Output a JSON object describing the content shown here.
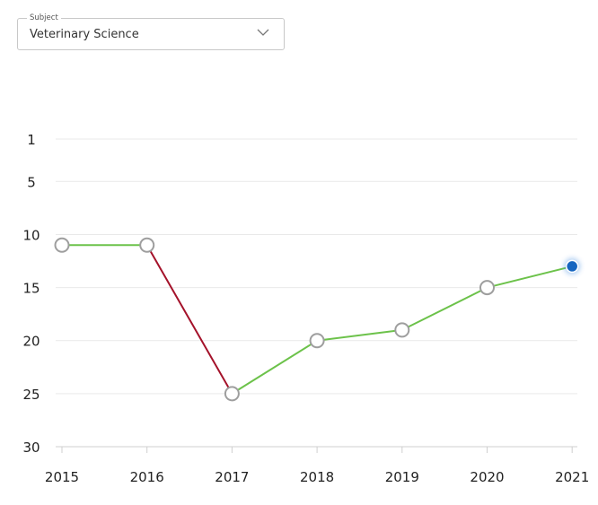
{
  "subject_select": {
    "legend": "Subject",
    "value": "Veterinary Science"
  },
  "chart_data": {
    "type": "line",
    "title": "",
    "xlabel": "",
    "ylabel": "",
    "x": [
      "2015",
      "2016",
      "2017",
      "2018",
      "2019",
      "2020",
      "2021"
    ],
    "values": [
      11,
      11,
      25,
      20,
      19,
      15,
      13
    ],
    "y_ticks": [
      1,
      5,
      10,
      15,
      20,
      25,
      30
    ],
    "ylim": [
      1,
      30
    ],
    "y_inverted": true,
    "grid": true,
    "colors": {
      "improving": "#6cc24a",
      "declining": "#a4122a",
      "current_point": "#1565c0",
      "point_border": "#9e9e9e",
      "grid": "#e9e9e9"
    }
  }
}
